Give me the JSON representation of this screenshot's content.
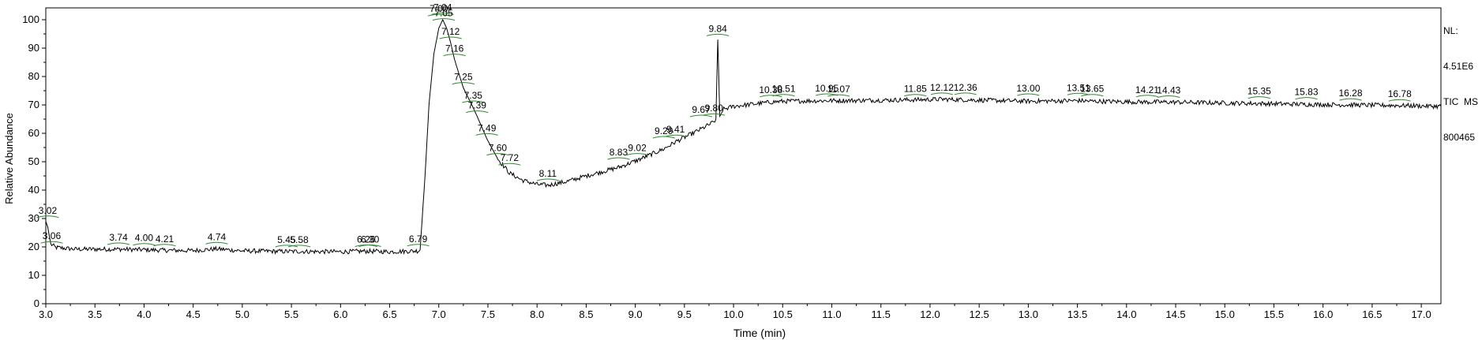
{
  "chart_data": {
    "type": "line",
    "xlabel": "Time (min)",
    "ylabel": "Relative Abundance",
    "xlim": [
      3.0,
      17.2
    ],
    "ylim": [
      0,
      100
    ],
    "x_ticks": [
      "3.0",
      "3.5",
      "4.0",
      "4.5",
      "5.0",
      "5.5",
      "6.0",
      "6.5",
      "7.0",
      "7.5",
      "8.0",
      "8.5",
      "9.0",
      "9.5",
      "10.0",
      "10.5",
      "11.0",
      "11.5",
      "12.0",
      "12.5",
      "13.0",
      "13.5",
      "14.0",
      "14.5",
      "15.0",
      "15.5",
      "16.0",
      "16.5",
      "17.0"
    ],
    "y_ticks": [
      "0",
      "10",
      "20",
      "30",
      "40",
      "50",
      "60",
      "70",
      "80",
      "90",
      "100"
    ],
    "grid": false,
    "line_color": "#000000",
    "marker_color": "#2e8b2e",
    "trace": [
      [
        3.0,
        29
      ],
      [
        3.02,
        27
      ],
      [
        3.05,
        21
      ],
      [
        3.1,
        19.8
      ],
      [
        3.3,
        19.2
      ],
      [
        3.74,
        19.2
      ],
      [
        4.0,
        19
      ],
      [
        4.21,
        18.8
      ],
      [
        4.5,
        18.7
      ],
      [
        4.74,
        19.3
      ],
      [
        5.0,
        18.6
      ],
      [
        5.45,
        18.4
      ],
      [
        5.58,
        18.4
      ],
      [
        6.0,
        18.3
      ],
      [
        6.26,
        18.5
      ],
      [
        6.5,
        18.3
      ],
      [
        6.79,
        18.6
      ],
      [
        6.81,
        19
      ],
      [
        6.86,
        45
      ],
      [
        6.9,
        70
      ],
      [
        6.95,
        88
      ],
      [
        7.0,
        97
      ],
      [
        7.04,
        100
      ],
      [
        7.08,
        97
      ],
      [
        7.12,
        92
      ],
      [
        7.16,
        86
      ],
      [
        7.25,
        76
      ],
      [
        7.35,
        69
      ],
      [
        7.39,
        66
      ],
      [
        7.49,
        58
      ],
      [
        7.6,
        51
      ],
      [
        7.72,
        46
      ],
      [
        7.85,
        43.5
      ],
      [
        8.0,
        42
      ],
      [
        8.11,
        41.7
      ],
      [
        8.3,
        43
      ],
      [
        8.5,
        45
      ],
      [
        8.83,
        48
      ],
      [
        9.02,
        50.5
      ],
      [
        9.29,
        54.5
      ],
      [
        9.41,
        57
      ],
      [
        9.67,
        61.5
      ],
      [
        9.8,
        64
      ],
      [
        9.82,
        65
      ],
      [
        9.84,
        93
      ],
      [
        9.86,
        66
      ],
      [
        9.9,
        68.5
      ],
      [
        10.0,
        69.5
      ],
      [
        10.38,
        71
      ],
      [
        10.51,
        71.3
      ],
      [
        10.95,
        71.5
      ],
      [
        11.07,
        71.5
      ],
      [
        11.85,
        71.8
      ],
      [
        12.12,
        72
      ],
      [
        12.36,
        71.8
      ],
      [
        13.0,
        71.3
      ],
      [
        13.51,
        71.5
      ],
      [
        13.65,
        71.3
      ],
      [
        14.21,
        71
      ],
      [
        14.43,
        71
      ],
      [
        15.35,
        70.5
      ],
      [
        15.83,
        70.2
      ],
      [
        16.28,
        70
      ],
      [
        16.78,
        69.8
      ],
      [
        17.2,
        69.5
      ]
    ],
    "peak_labels": [
      {
        "text": "3.02",
        "x": 3.02,
        "y": 29.5
      },
      {
        "text": "3.06",
        "x": 3.06,
        "y": 20.5
      },
      {
        "text": "3.74",
        "x": 3.74,
        "y": 20
      },
      {
        "text": "4.00",
        "x": 4.0,
        "y": 19.8
      },
      {
        "text": "4.21",
        "x": 4.21,
        "y": 19.5
      },
      {
        "text": "4.74",
        "x": 4.74,
        "y": 20.2
      },
      {
        "text": "5.45",
        "x": 5.45,
        "y": 19.2
      },
      {
        "text": "5.58",
        "x": 5.58,
        "y": 19.2
      },
      {
        "text": "6.26",
        "x": 6.26,
        "y": 19.3
      },
      {
        "text": "6.30",
        "x": 6.3,
        "y": 19.3
      },
      {
        "text": "6.79",
        "x": 6.79,
        "y": 19.5
      },
      {
        "text": "7.00",
        "x": 7.0,
        "y": 100.5
      },
      {
        "text": "7.04",
        "x": 7.04,
        "y": 101
      },
      {
        "text": "7.05",
        "x": 7.05,
        "y": 99
      },
      {
        "text": "7.12",
        "x": 7.12,
        "y": 92.5
      },
      {
        "text": "7.16",
        "x": 7.16,
        "y": 86.5
      },
      {
        "text": "7.25",
        "x": 7.25,
        "y": 76.5
      },
      {
        "text": "7.35",
        "x": 7.35,
        "y": 70
      },
      {
        "text": "7.39",
        "x": 7.39,
        "y": 66.5
      },
      {
        "text": "7.49",
        "x": 7.49,
        "y": 58.5
      },
      {
        "text": "7.60",
        "x": 7.6,
        "y": 51.5
      },
      {
        "text": "7.72",
        "x": 7.72,
        "y": 48
      },
      {
        "text": "8.11",
        "x": 8.11,
        "y": 42.5
      },
      {
        "text": "8.83",
        "x": 8.83,
        "y": 50
      },
      {
        "text": "9.02",
        "x": 9.02,
        "y": 51.5
      },
      {
        "text": "9.29",
        "x": 9.29,
        "y": 57.5
      },
      {
        "text": "9.41",
        "x": 9.41,
        "y": 58
      },
      {
        "text": "9.67",
        "x": 9.67,
        "y": 65
      },
      {
        "text": "9.80",
        "x": 9.8,
        "y": 65.5
      },
      {
        "text": "9.84",
        "x": 9.84,
        "y": 93.5
      },
      {
        "text": "10.38",
        "x": 10.38,
        "y": 72
      },
      {
        "text": "10.51",
        "x": 10.51,
        "y": 72.3
      },
      {
        "text": "10.95",
        "x": 10.95,
        "y": 72.5
      },
      {
        "text": "11.07",
        "x": 11.07,
        "y": 72.2
      },
      {
        "text": "11.85",
        "x": 11.85,
        "y": 72.3
      },
      {
        "text": "12.12",
        "x": 12.12,
        "y": 72.8
      },
      {
        "text": "12.36",
        "x": 12.36,
        "y": 72.8
      },
      {
        "text": "13.00",
        "x": 13.0,
        "y": 72.5
      },
      {
        "text": "13.51",
        "x": 13.51,
        "y": 72.7
      },
      {
        "text": "13.65",
        "x": 13.65,
        "y": 72.3
      },
      {
        "text": "14.21",
        "x": 14.21,
        "y": 72
      },
      {
        "text": "14.43",
        "x": 14.43,
        "y": 71.8
      },
      {
        "text": "15.35",
        "x": 15.35,
        "y": 71.5
      },
      {
        "text": "15.83",
        "x": 15.83,
        "y": 71.2
      },
      {
        "text": "16.28",
        "x": 16.28,
        "y": 70.8
      },
      {
        "text": "16.78",
        "x": 16.78,
        "y": 70.5
      }
    ]
  },
  "info": {
    "nl_label": "NL:",
    "nl_value": "4.51E6",
    "scan_filter": "TIC  MS",
    "sample_id": "800465"
  }
}
